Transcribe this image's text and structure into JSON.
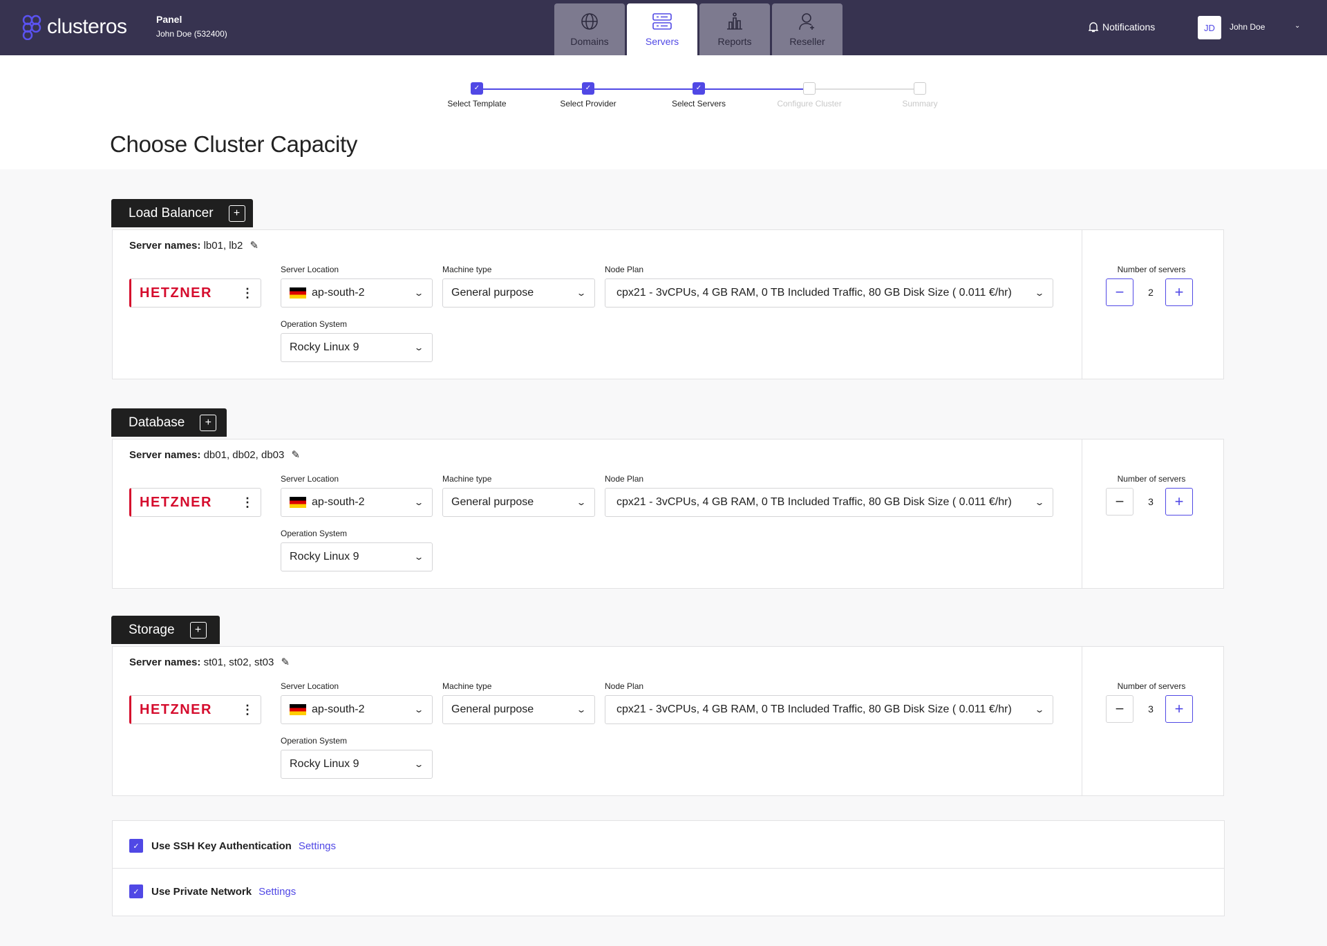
{
  "header": {
    "logo": "clusteros",
    "panel_title": "Panel",
    "panel_user": "John Doe (532400)",
    "tabs": [
      {
        "label": "Domains",
        "icon": "globe-icon"
      },
      {
        "label": "Servers",
        "icon": "server-icon",
        "active": true
      },
      {
        "label": "Reports",
        "icon": "chart-icon"
      },
      {
        "label": "Reseller",
        "icon": "user-plus-icon"
      }
    ],
    "notifications": "Notifications",
    "avatar": "JD",
    "user_name": "John Doe"
  },
  "stepper": [
    {
      "label": "Select Template",
      "done": true
    },
    {
      "label": "Select Provider",
      "done": true
    },
    {
      "label": "Select Servers",
      "done": true
    },
    {
      "label": "Configure Cluster",
      "done": false
    },
    {
      "label": "Summary",
      "done": false
    }
  ],
  "page_title": "Choose Cluster Capacity",
  "labels": {
    "server_names": "Server names:",
    "location": "Server Location",
    "machine": "Machine type",
    "plan": "Node Plan",
    "os": "Operation System",
    "count": "Number of servers",
    "provider": "HETZNER",
    "plus": "+",
    "minus": "−"
  },
  "sections": [
    {
      "title": "Load Balancer",
      "names": "lb01, lb2",
      "location": "ap-south-2",
      "machine": "General purpose",
      "plan": "cpx21 - 3vCPUs, 4 GB RAM, 0 TB Included Traffic, 80 GB Disk Size ( 0.011 €/hr)",
      "os": "Rocky Linux 9",
      "count": "2"
    },
    {
      "title": "Database",
      "names": "db01, db02, db03",
      "location": "ap-south-2",
      "machine": "General purpose",
      "plan": "cpx21 - 3vCPUs, 4 GB RAM, 0 TB Included Traffic, 80 GB Disk Size ( 0.011 €/hr)",
      "os": "Rocky Linux 9",
      "count": "3"
    },
    {
      "title": "Storage",
      "names": "st01, st02, st03",
      "location": "ap-south-2",
      "machine": "General purpose",
      "plan": "cpx21 - 3vCPUs, 4 GB RAM, 0 TB Included Traffic, 80 GB Disk Size ( 0.011 €/hr)",
      "os": "Rocky Linux 9",
      "count": "3"
    }
  ],
  "options": [
    {
      "label": "Use SSH Key Authentication",
      "link": "Settings",
      "checked": true
    },
    {
      "label": "Use Private Network",
      "link": "Settings",
      "checked": true
    }
  ],
  "colors": {
    "accent": "#5048e5",
    "topbar": "#373350",
    "hetzner": "#d50c2d"
  }
}
